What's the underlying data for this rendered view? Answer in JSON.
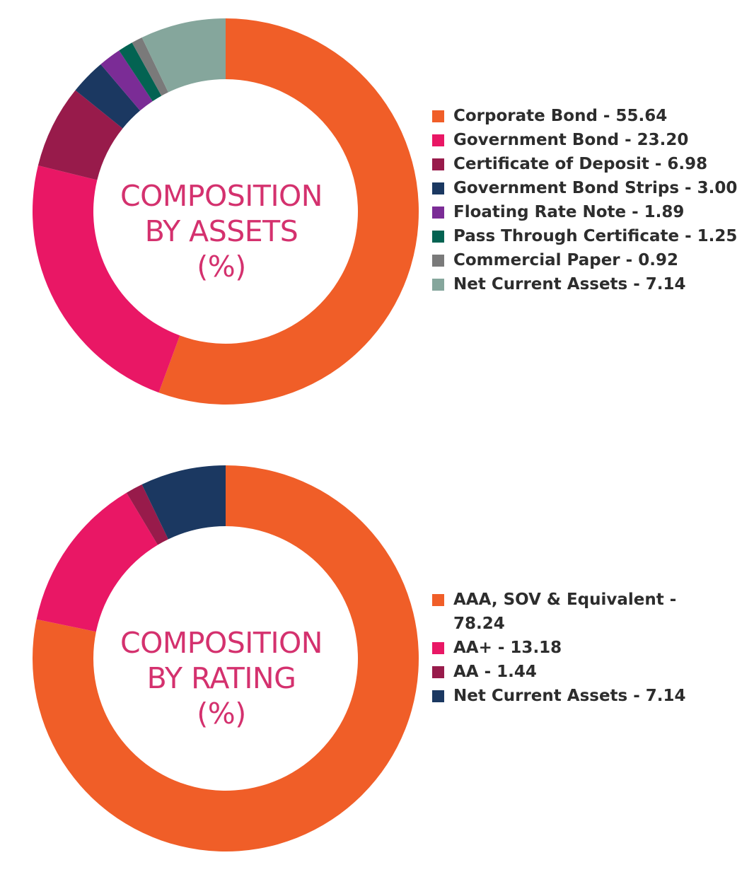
{
  "colors": {
    "center_text": "#d4316e",
    "legend_text": "#2d2d2d"
  },
  "chart_data": [
    {
      "type": "pie",
      "variant": "donut",
      "title_lines": [
        "COMPOSITION",
        "BY ASSETS",
        "(%)"
      ],
      "legend_position": "right",
      "slices": [
        {
          "label": "Corporate Bond - 55.64",
          "name": "Corporate Bond",
          "value": 55.64,
          "color": "#f05e28"
        },
        {
          "label": "Government Bond - 23.20",
          "name": "Government Bond",
          "value": 23.2,
          "color": "#e91765"
        },
        {
          "label": "Certificate of Deposit - 6.98",
          "name": "Certificate of Deposit",
          "value": 6.98,
          "color": "#981b4b"
        },
        {
          "label": "Government Bond Strips - 3.00",
          "name": "Government Bond Strips",
          "value": 3.0,
          "color": "#1b3861"
        },
        {
          "label": "Floating Rate Note - 1.89",
          "name": "Floating Rate Note",
          "value": 1.89,
          "color": "#7b2c96"
        },
        {
          "label": "Pass Through Certificate - 1.25",
          "name": "Pass Through Certificate",
          "value": 1.25,
          "color": "#036352"
        },
        {
          "label": "Commercial Paper - 0.92",
          "name": "Commercial Paper",
          "value": 0.92,
          "color": "#7a7a7a"
        },
        {
          "label": "Net Current Assets - 7.14",
          "name": "Net Current Assets",
          "value": 7.14,
          "color": "#85a69c"
        }
      ]
    },
    {
      "type": "pie",
      "variant": "donut",
      "title_lines": [
        "COMPOSITION",
        "BY RATING",
        "(%)"
      ],
      "legend_position": "right",
      "slices": [
        {
          "label": "AAA, SOV & Equivalent - 78.24",
          "name": "AAA, SOV & Equivalent",
          "value": 78.24,
          "color": "#f05e28"
        },
        {
          "label": "AA+ - 13.18",
          "name": "AA+",
          "value": 13.18,
          "color": "#e91765"
        },
        {
          "label": "AA - 1.44",
          "name": "AA",
          "value": 1.44,
          "color": "#981b4b"
        },
        {
          "label": "Net Current Assets - 7.14",
          "name": "Net Current Assets",
          "value": 7.14,
          "color": "#1b3861"
        }
      ]
    }
  ]
}
